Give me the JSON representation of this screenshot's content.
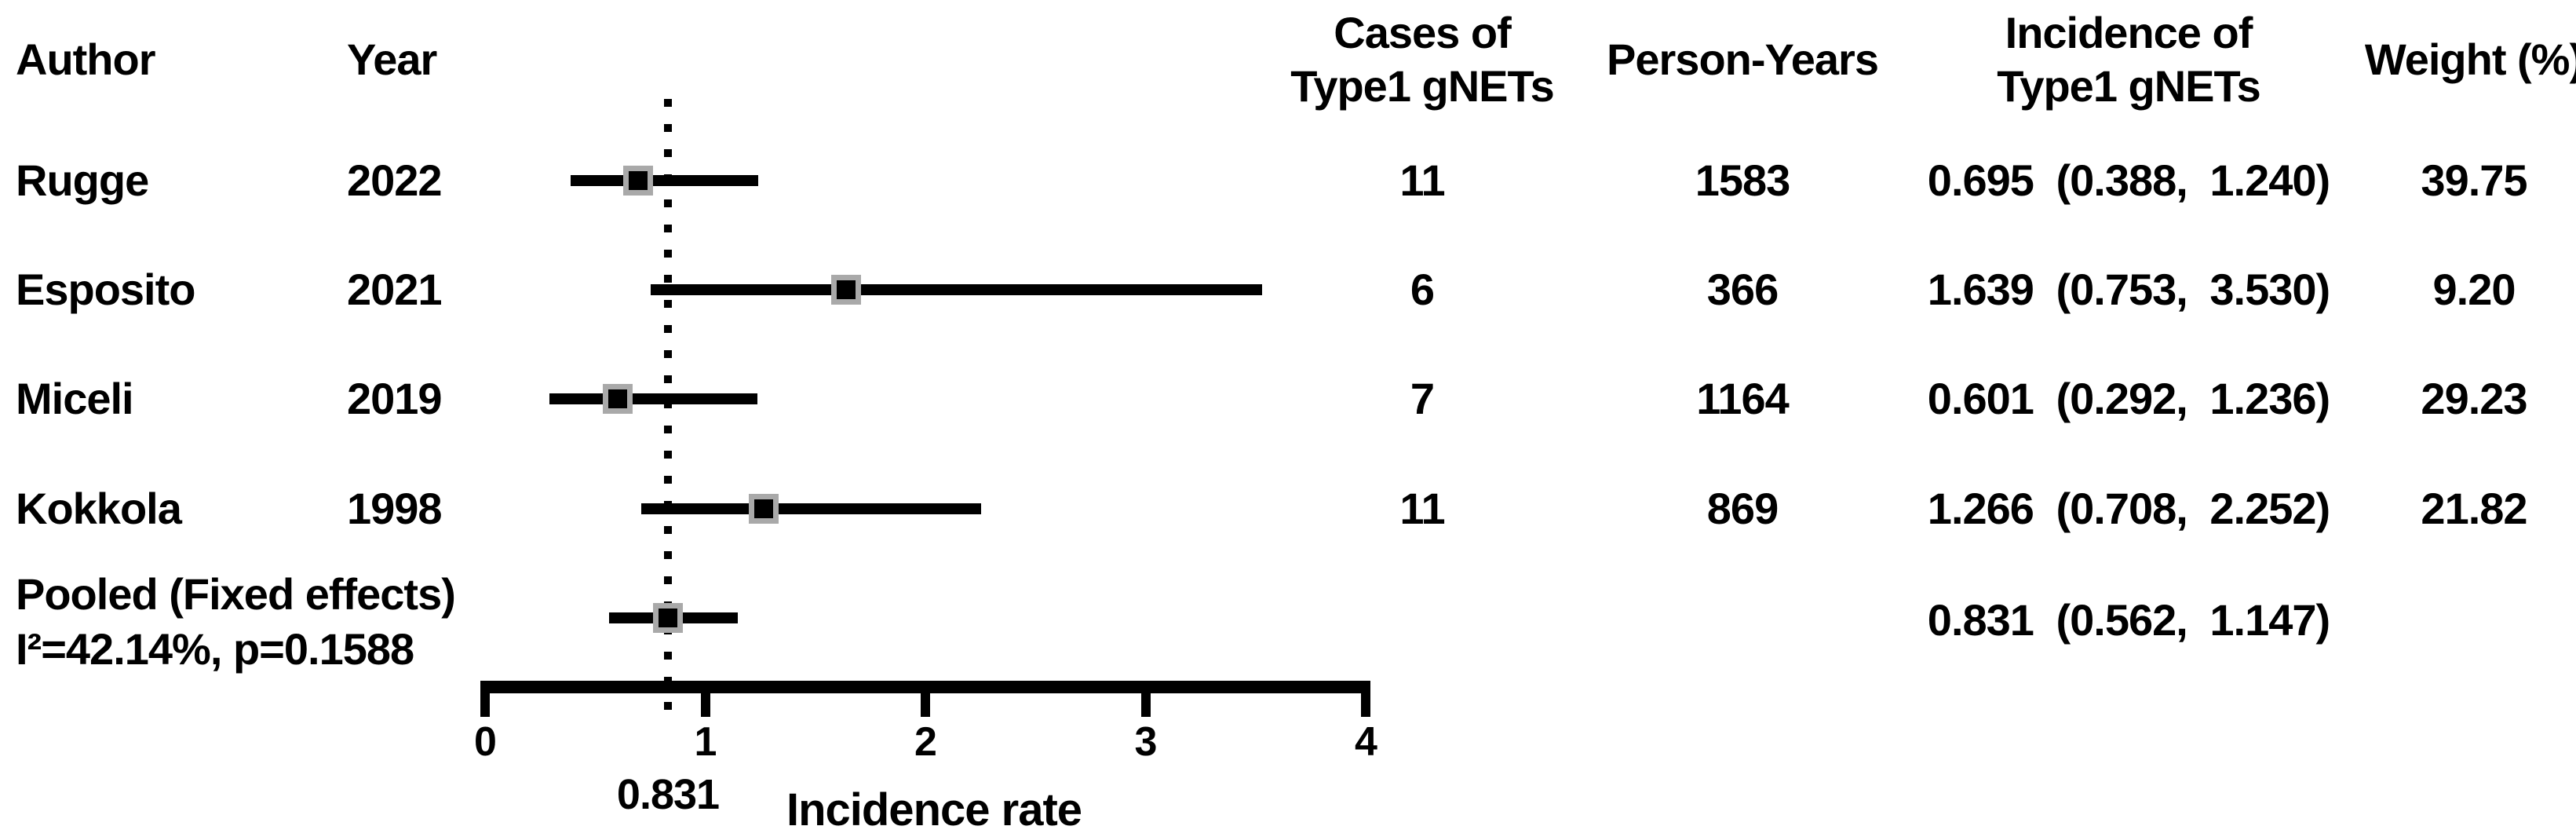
{
  "figure": {
    "background_color": "#ffffff",
    "text_color": "#000000",
    "ci_line_color": "#000000",
    "marker_fill_color": "#000000",
    "marker_border_color": "#a9a9a9"
  },
  "columns": {
    "author": "Author",
    "year": "Year",
    "cases_line1": "Cases of",
    "cases_line2": "Type1 gNETs",
    "person_years": "Person-Years",
    "incidence_line1": "Incidence of",
    "incidence_line2": "Type1 gNETs",
    "weight": "Weight (%)"
  },
  "chart_data": {
    "type": "scatter",
    "subtype": "forest-plot",
    "title": "",
    "xlabel": "Incidence rate",
    "ylabel": "",
    "xlim": [
      0,
      4
    ],
    "xticks": [
      "0",
      "1",
      "2",
      "3",
      "4"
    ],
    "xtick_values": [
      0,
      1,
      2,
      3,
      4
    ],
    "grid": false,
    "reference_line": {
      "value": 0.831,
      "label": "0.831",
      "style": "dotted"
    },
    "studies": [
      {
        "author": "Rugge",
        "year": "2022",
        "cases": "11",
        "person_years": "1583",
        "estimate": 0.695,
        "ci_low": 0.388,
        "ci_high": 1.24,
        "incidence_label": "0.695 (0.388, 1.240)",
        "weight": "39.75"
      },
      {
        "author": "Esposito",
        "year": "2021",
        "cases": "6",
        "person_years": "366",
        "estimate": 1.639,
        "ci_low": 0.753,
        "ci_high": 3.53,
        "incidence_label": "1.639 (0.753, 3.530)",
        "weight": "9.20"
      },
      {
        "author": "Miceli",
        "year": "2019",
        "cases": "7",
        "person_years": "1164",
        "estimate": 0.601,
        "ci_low": 0.292,
        "ci_high": 1.236,
        "incidence_label": "0.601 (0.292, 1.236)",
        "weight": "29.23"
      },
      {
        "author": "Kokkola",
        "year": "1998",
        "cases": "11",
        "person_years": "869",
        "estimate": 1.266,
        "ci_low": 0.708,
        "ci_high": 2.252,
        "incidence_label": "1.266 (0.708, 2.252)",
        "weight": "21.82"
      }
    ],
    "pooled": {
      "label_line1": "Pooled (Fixed effects)",
      "label_line2": "I²=42.14%, p=0.1588",
      "estimate": 0.831,
      "ci_low": 0.562,
      "ci_high": 1.147,
      "incidence_label": "0.831 (0.562, 1.147)"
    }
  }
}
